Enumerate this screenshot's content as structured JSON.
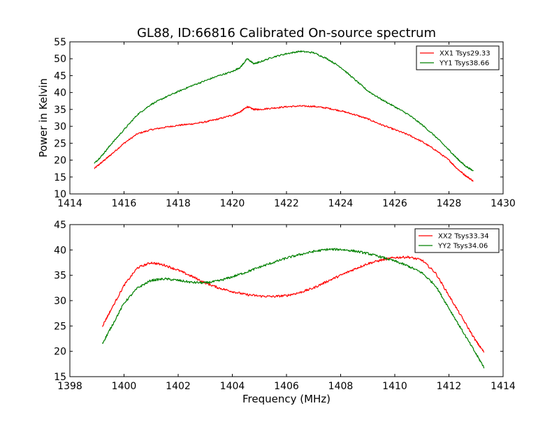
{
  "figure": {
    "title": "GL88, ID:66816 Calibrated On-source spectrum",
    "ylabel": "Power in Kelvin",
    "xlabel": "Frequency (MHz)"
  },
  "chart_data": [
    {
      "type": "line",
      "title": "GL88, ID:66816 Calibrated On-source spectrum",
      "xlabel": "",
      "ylabel": "Power in Kelvin",
      "xlim": [
        1414,
        1430
      ],
      "ylim": [
        10,
        55
      ],
      "xticks": [
        1414,
        1416,
        1418,
        1420,
        1422,
        1424,
        1426,
        1428,
        1430
      ],
      "yticks": [
        10,
        15,
        20,
        25,
        30,
        35,
        40,
        45,
        50,
        55
      ],
      "grid": false,
      "legend": "top-right",
      "series": [
        {
          "name": "XX1 Tsys29.33",
          "color": "#ff0000",
          "x": [
            1414.9,
            1415.2,
            1415.5,
            1416.0,
            1416.5,
            1417.0,
            1417.5,
            1418.0,
            1418.5,
            1419.0,
            1419.5,
            1420.0,
            1420.3,
            1420.55,
            1420.8,
            1421.0,
            1421.5,
            1422.0,
            1422.5,
            1423.0,
            1423.5,
            1424.0,
            1424.5,
            1425.0,
            1425.5,
            1426.0,
            1426.5,
            1427.0,
            1427.5,
            1428.0,
            1428.3,
            1428.6,
            1428.9
          ],
          "y": [
            17.5,
            19.5,
            21.5,
            25.0,
            27.8,
            29.0,
            29.7,
            30.3,
            30.7,
            31.3,
            32.2,
            33.3,
            34.3,
            35.8,
            35.0,
            35.0,
            35.4,
            35.8,
            36.0,
            35.9,
            35.4,
            34.6,
            33.5,
            32.2,
            30.5,
            29.0,
            27.5,
            25.5,
            23.0,
            20.0,
            17.5,
            15.5,
            13.8
          ]
        },
        {
          "name": "YY1 Tsys38.66",
          "color": "#008000",
          "x": [
            1414.9,
            1415.2,
            1415.5,
            1416.0,
            1416.5,
            1417.0,
            1417.5,
            1418.0,
            1418.5,
            1419.0,
            1419.5,
            1420.0,
            1420.3,
            1420.55,
            1420.8,
            1421.0,
            1421.5,
            1422.0,
            1422.5,
            1423.0,
            1423.5,
            1424.0,
            1424.5,
            1425.0,
            1425.5,
            1426.0,
            1426.5,
            1427.0,
            1427.5,
            1428.0,
            1428.3,
            1428.6,
            1428.9
          ],
          "y": [
            19.0,
            21.5,
            24.5,
            29.0,
            33.5,
            36.5,
            38.5,
            40.3,
            42.0,
            43.5,
            45.0,
            46.2,
            47.5,
            50.0,
            48.5,
            49.0,
            50.5,
            51.5,
            52.2,
            51.8,
            50.0,
            47.5,
            44.0,
            40.5,
            38.0,
            35.8,
            33.5,
            30.5,
            27.0,
            23.0,
            20.5,
            18.3,
            16.8
          ]
        }
      ]
    },
    {
      "type": "line",
      "title": "",
      "xlabel": "Frequency (MHz)",
      "ylabel": "",
      "xlim": [
        1398,
        1414
      ],
      "ylim": [
        15,
        45
      ],
      "xticks": [
        1398,
        1400,
        1402,
        1404,
        1406,
        1408,
        1410,
        1412,
        1414
      ],
      "yticks": [
        15,
        20,
        25,
        30,
        35,
        40,
        45
      ],
      "grid": false,
      "legend": "top-right",
      "series": [
        {
          "name": "XX2 Tsys33.34",
          "color": "#ff0000",
          "x": [
            1399.2,
            1399.5,
            1400.0,
            1400.5,
            1401.0,
            1401.5,
            1402.0,
            1402.5,
            1403.0,
            1403.5,
            1404.0,
            1404.5,
            1405.0,
            1405.5,
            1406.0,
            1406.5,
            1407.0,
            1407.5,
            1408.0,
            1408.5,
            1409.0,
            1409.5,
            1410.0,
            1410.5,
            1411.0,
            1411.5,
            1412.0,
            1412.5,
            1413.0,
            1413.3
          ],
          "y": [
            25.0,
            28.0,
            33.0,
            36.5,
            37.5,
            37.0,
            36.0,
            34.8,
            33.5,
            32.5,
            31.8,
            31.2,
            30.9,
            30.8,
            31.0,
            31.6,
            32.5,
            33.8,
            35.0,
            36.2,
            37.3,
            38.0,
            38.5,
            38.6,
            38.0,
            35.5,
            31.0,
            26.5,
            22.0,
            19.8
          ]
        },
        {
          "name": "YY2 Tsys34.06",
          "color": "#008000",
          "x": [
            1399.2,
            1399.5,
            1400.0,
            1400.5,
            1401.0,
            1401.5,
            1402.0,
            1402.5,
            1403.0,
            1403.5,
            1404.0,
            1404.5,
            1405.0,
            1405.5,
            1406.0,
            1406.5,
            1407.0,
            1407.5,
            1408.0,
            1408.5,
            1409.0,
            1409.5,
            1410.0,
            1410.5,
            1411.0,
            1411.5,
            1412.0,
            1412.5,
            1413.0,
            1413.3
          ],
          "y": [
            21.5,
            24.5,
            29.5,
            32.5,
            34.0,
            34.3,
            34.0,
            33.6,
            33.5,
            33.9,
            34.7,
            35.6,
            36.6,
            37.5,
            38.4,
            39.1,
            39.7,
            40.1,
            40.1,
            39.8,
            39.3,
            38.6,
            37.8,
            36.8,
            35.5,
            33.0,
            28.5,
            24.0,
            19.5,
            16.8
          ]
        }
      ]
    }
  ]
}
